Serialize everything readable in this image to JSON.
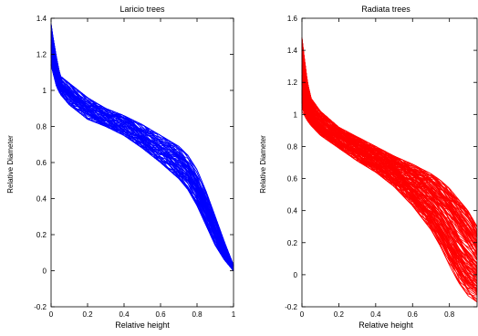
{
  "chart_data": [
    {
      "type": "line",
      "title": "Laricio trees",
      "xlabel": "Relative height",
      "ylabel": "Relative Diameter",
      "xlim": [
        0,
        1
      ],
      "ylim": [
        -0.2,
        1.4
      ],
      "xticks": [
        "0",
        "0.2",
        "0.4",
        "0.6",
        "0.8",
        "1"
      ],
      "yticks": [
        "-0.2",
        "0",
        "0.2",
        "0.4",
        "0.6",
        "0.8",
        "1",
        "1.2",
        "1.4"
      ],
      "grid": false,
      "color": "#0000ff",
      "curve_count": 80,
      "envelope": {
        "x": [
          0.0,
          0.01,
          0.03,
          0.05,
          0.1,
          0.2,
          0.3,
          0.4,
          0.5,
          0.6,
          0.7,
          0.75,
          0.8,
          0.85,
          0.9,
          0.95,
          1.0
        ],
        "upper": [
          1.37,
          1.3,
          1.18,
          1.08,
          1.04,
          0.96,
          0.9,
          0.86,
          0.81,
          0.75,
          0.69,
          0.64,
          0.56,
          0.44,
          0.3,
          0.16,
          0.03
        ],
        "lower": [
          1.14,
          1.1,
          1.02,
          0.98,
          0.92,
          0.84,
          0.8,
          0.75,
          0.68,
          0.6,
          0.51,
          0.45,
          0.36,
          0.25,
          0.14,
          0.06,
          0.0
        ]
      }
    },
    {
      "type": "line",
      "title": "Radiata trees",
      "xlabel": "Relative height",
      "ylabel": "Relative Diameter",
      "xlim": [
        0,
        0.95
      ],
      "ylim": [
        -0.2,
        1.6
      ],
      "xticks": [
        "0",
        "0.2",
        "0.4",
        "0.6",
        "0.8"
      ],
      "yticks": [
        "-0.2",
        "0",
        "0.2",
        "0.4",
        "0.6",
        "0.8",
        "1",
        "1.2",
        "1.4",
        "1.6"
      ],
      "grid": false,
      "color": "#ff0000",
      "curve_count": 150,
      "envelope": {
        "x": [
          0.0,
          0.01,
          0.03,
          0.05,
          0.1,
          0.2,
          0.3,
          0.4,
          0.5,
          0.6,
          0.7,
          0.75,
          0.8,
          0.85,
          0.9,
          0.95
        ],
        "upper": [
          1.48,
          1.38,
          1.2,
          1.1,
          1.02,
          0.92,
          0.86,
          0.8,
          0.74,
          0.69,
          0.63,
          0.59,
          0.54,
          0.47,
          0.4,
          0.3
        ],
        "lower": [
          1.02,
          1.0,
          0.96,
          0.93,
          0.87,
          0.79,
          0.71,
          0.64,
          0.55,
          0.43,
          0.28,
          0.18,
          0.06,
          -0.05,
          -0.13,
          -0.17
        ]
      }
    }
  ]
}
